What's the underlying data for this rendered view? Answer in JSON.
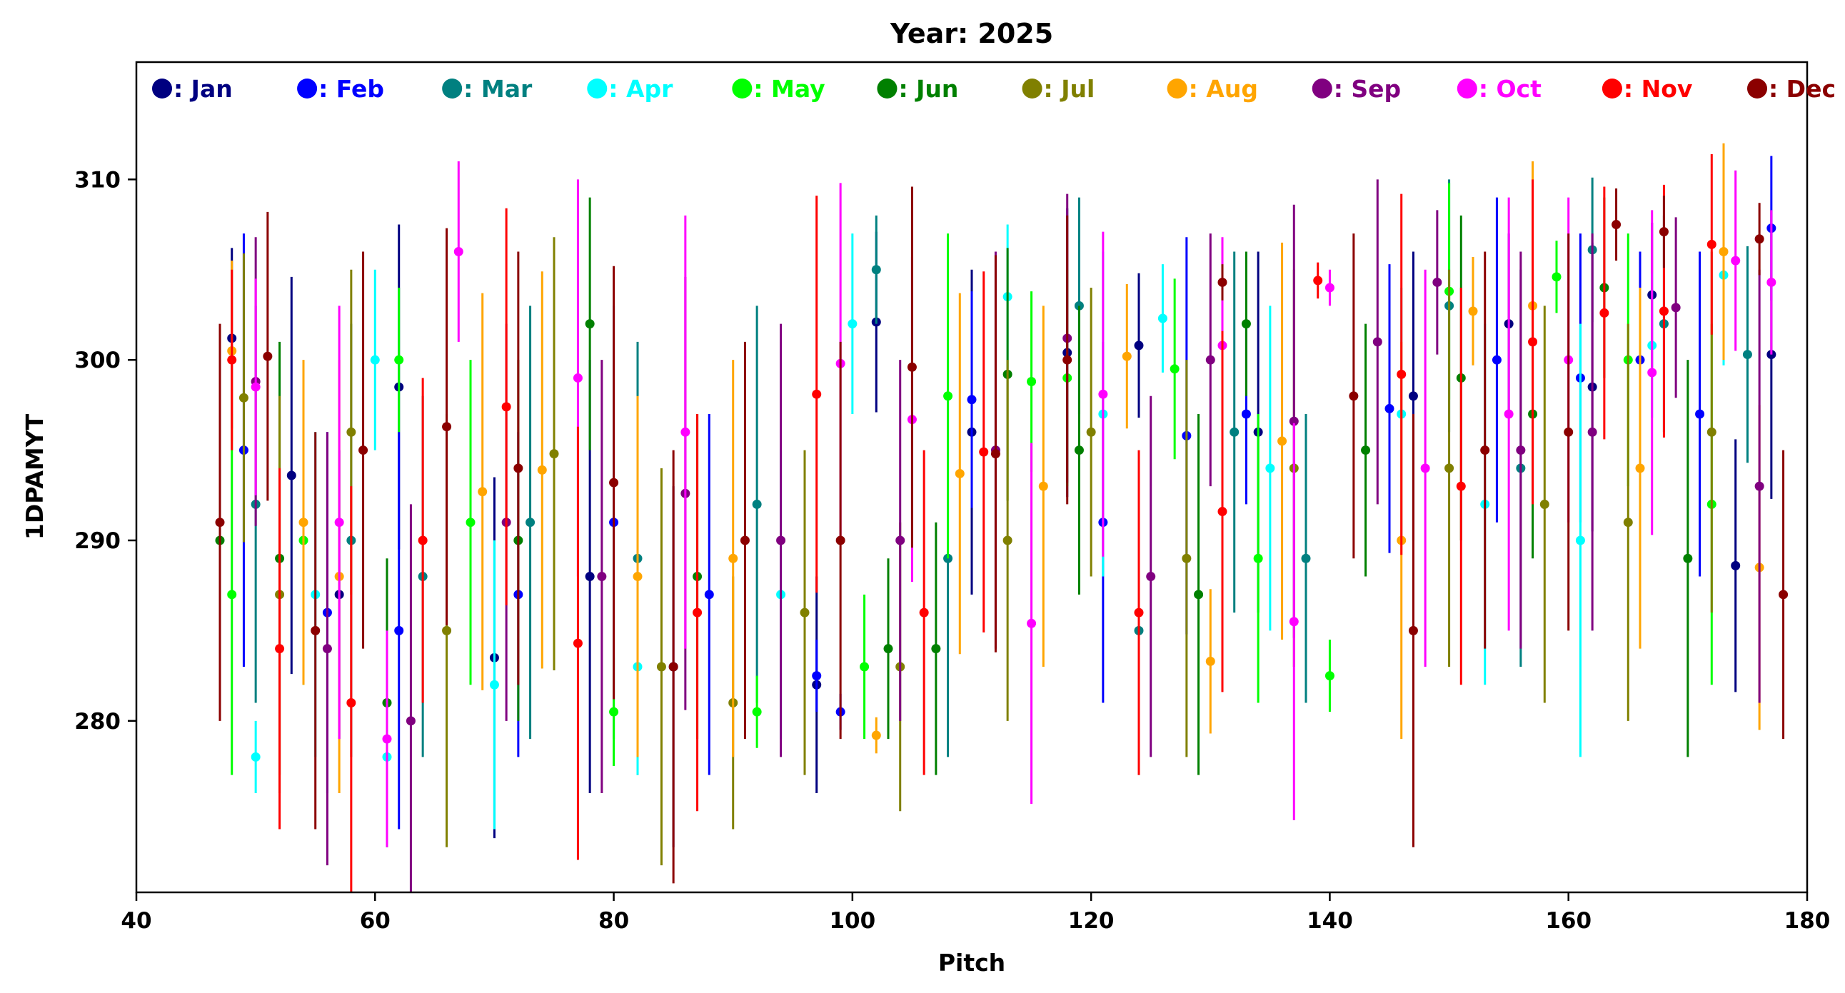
{
  "chart_data": {
    "type": "scatter",
    "title": "Year: 2025",
    "xlabel": "Pitch",
    "ylabel": "1DPAMYT",
    "xlim": [
      40,
      180
    ],
    "ylim": [
      270.5,
      316.5
    ],
    "x_ticks": [
      40,
      60,
      80,
      100,
      120,
      140,
      160,
      180
    ],
    "y_ticks": [
      280,
      290,
      300,
      310
    ],
    "grid": false,
    "legend_placement": "top, single row inside axes",
    "error_bars": true,
    "legend": [
      {
        "label": "Jan",
        "color": "#000080"
      },
      {
        "label": "Feb",
        "color": "#0000ff"
      },
      {
        "label": "Mar",
        "color": "#008080"
      },
      {
        "label": "Apr",
        "color": "#00ffff"
      },
      {
        "label": "May",
        "color": "#00ff00"
      },
      {
        "label": "Jun",
        "color": "#008000"
      },
      {
        "label": "Jul",
        "color": "#808000"
      },
      {
        "label": "Aug",
        "color": "#ffa500"
      },
      {
        "label": "Sep",
        "color": "#800080"
      },
      {
        "label": "Oct",
        "color": "#ff00ff"
      },
      {
        "label": "Nov",
        "color": "#ff0000"
      },
      {
        "label": "Dec",
        "color": "#8b0000"
      }
    ],
    "series": [
      {
        "name": "Jan",
        "points": [
          [
            48,
            301.2,
            5
          ],
          [
            53,
            293.6,
            11
          ],
          [
            57,
            287.0,
            8
          ],
          [
            62,
            298.5,
            9
          ],
          [
            70,
            283.5,
            10
          ],
          [
            78,
            288.0,
            12
          ],
          [
            85,
            283.0,
            10
          ],
          [
            97,
            282.0,
            6
          ],
          [
            102,
            302.1,
            5
          ],
          [
            110,
            296.0,
            9
          ],
          [
            118,
            300.4,
            8
          ],
          [
            124,
            300.8,
            4
          ],
          [
            134,
            296.0,
            10
          ],
          [
            147,
            298.0,
            8
          ],
          [
            155,
            302.0,
            5
          ],
          [
            162,
            298.5,
            8
          ],
          [
            167,
            303.6,
            4
          ],
          [
            174,
            288.6,
            7
          ],
          [
            177,
            300.3,
            8
          ]
        ]
      },
      {
        "name": "Feb",
        "points": [
          [
            49,
            295.0,
            12
          ],
          [
            56,
            286.0,
            10
          ],
          [
            62,
            285.0,
            11
          ],
          [
            72,
            287.0,
            9
          ],
          [
            80,
            291.0,
            12
          ],
          [
            88,
            287.0,
            10
          ],
          [
            97,
            282.5,
            2
          ],
          [
            99,
            280.5,
            1
          ],
          [
            110,
            297.8,
            6
          ],
          [
            121,
            291.0,
            10
          ],
          [
            128,
            295.8,
            11
          ],
          [
            133,
            297.0,
            5
          ],
          [
            145,
            297.3,
            8
          ],
          [
            154,
            300.0,
            9
          ],
          [
            161,
            299.0,
            8
          ],
          [
            166,
            300.0,
            6
          ],
          [
            171,
            297.0,
            9
          ],
          [
            177,
            307.3,
            4
          ]
        ]
      },
      {
        "name": "Mar",
        "points": [
          [
            50,
            292.0,
            11
          ],
          [
            58,
            290.0,
            12
          ],
          [
            64,
            288.0,
            10
          ],
          [
            73,
            291.0,
            12
          ],
          [
            82,
            289.0,
            12
          ],
          [
            92,
            292.0,
            11
          ],
          [
            102,
            305.0,
            3
          ],
          [
            108,
            289.0,
            11
          ],
          [
            119,
            303.0,
            6
          ],
          [
            124,
            285.0,
            8
          ],
          [
            132,
            296.0,
            10
          ],
          [
            138,
            289.0,
            8
          ],
          [
            150,
            303.0,
            7
          ],
          [
            156,
            294.0,
            11
          ],
          [
            162,
            306.1,
            4
          ],
          [
            168,
            302.0,
            6
          ],
          [
            175,
            300.3,
            6
          ]
        ]
      },
      {
        "name": "Apr",
        "points": [
          [
            50,
            278.0,
            2
          ],
          [
            55,
            287.0,
            9
          ],
          [
            60,
            300.0,
            5
          ],
          [
            61,
            278.0,
            1
          ],
          [
            70,
            282.0,
            8
          ],
          [
            82,
            283.0,
            6
          ],
          [
            94,
            287.0,
            8
          ],
          [
            100,
            302.0,
            5
          ],
          [
            113,
            303.5,
            4
          ],
          [
            121,
            297.0,
            9
          ],
          [
            126,
            302.3,
            3
          ],
          [
            135,
            294.0,
            9
          ],
          [
            146,
            297.0,
            7
          ],
          [
            153,
            292.0,
            10
          ],
          [
            161,
            290.0,
            12
          ],
          [
            167,
            300.8,
            4
          ],
          [
            173,
            304.7,
            5
          ]
        ]
      },
      {
        "name": "May",
        "points": [
          [
            48,
            287.0,
            10
          ],
          [
            54,
            290.0,
            8
          ],
          [
            62,
            300.0,
            4
          ],
          [
            68,
            291.0,
            9
          ],
          [
            80,
            280.5,
            3
          ],
          [
            92,
            280.5,
            2
          ],
          [
            101,
            283.0,
            4
          ],
          [
            108,
            298.0,
            9
          ],
          [
            115,
            298.8,
            5
          ],
          [
            118,
            299.0,
            6
          ],
          [
            127,
            299.5,
            5
          ],
          [
            134,
            289.0,
            8
          ],
          [
            140,
            282.5,
            2
          ],
          [
            150,
            303.8,
            6
          ],
          [
            159,
            304.6,
            2
          ],
          [
            165,
            300.0,
            7
          ],
          [
            172,
            292.0,
            10
          ]
        ]
      },
      {
        "name": "Jun",
        "points": [
          [
            47,
            290.0,
            8
          ],
          [
            52,
            289.0,
            12
          ],
          [
            61,
            281.0,
            8
          ],
          [
            72,
            290.0,
            10
          ],
          [
            78,
            302.0,
            7
          ],
          [
            87,
            288.0,
            9
          ],
          [
            103,
            284.0,
            5
          ],
          [
            107,
            284.0,
            7
          ],
          [
            113,
            299.2,
            7
          ],
          [
            119,
            295.0,
            8
          ],
          [
            129,
            287.0,
            10
          ],
          [
            133,
            302.0,
            4
          ],
          [
            143,
            295.0,
            7
          ],
          [
            151,
            299.0,
            9
          ],
          [
            157,
            297.0,
            8
          ],
          [
            163,
            304.0,
            5
          ],
          [
            170,
            289.0,
            11
          ]
        ]
      },
      {
        "name": "Jul",
        "points": [
          [
            49,
            297.9,
            8
          ],
          [
            52,
            287.0,
            11
          ],
          [
            58,
            296.0,
            9
          ],
          [
            66,
            285.0,
            12
          ],
          [
            75,
            294.8,
            12
          ],
          [
            84,
            283.0,
            11
          ],
          [
            90,
            281.0,
            7
          ],
          [
            96,
            286.0,
            9
          ],
          [
            104,
            283.0,
            8
          ],
          [
            113,
            290.0,
            10
          ],
          [
            120,
            296.0,
            8
          ],
          [
            128,
            289.0,
            11
          ],
          [
            137,
            294.0,
            11
          ],
          [
            150,
            294.0,
            11
          ],
          [
            158,
            292.0,
            11
          ],
          [
            165,
            291.0,
            11
          ],
          [
            172,
            296.0,
            10
          ]
        ]
      },
      {
        "name": "Aug",
        "points": [
          [
            48,
            300.5,
            5
          ],
          [
            54,
            291.0,
            9
          ],
          [
            57,
            288.0,
            12
          ],
          [
            69,
            292.7,
            11
          ],
          [
            74,
            293.9,
            11
          ],
          [
            82,
            288.0,
            10
          ],
          [
            90,
            289.0,
            11
          ],
          [
            102,
            279.2,
            1
          ],
          [
            109,
            293.7,
            10
          ],
          [
            116,
            293.0,
            10
          ],
          [
            123,
            300.2,
            4
          ],
          [
            130,
            283.3,
            4
          ],
          [
            136,
            295.5,
            11
          ],
          [
            146,
            290.0,
            11
          ],
          [
            152,
            302.7,
            3
          ],
          [
            157,
            303.0,
            8
          ],
          [
            166,
            294.0,
            10
          ],
          [
            173,
            306.0,
            6
          ],
          [
            176,
            288.5,
            9
          ]
        ]
      },
      {
        "name": "Sep",
        "points": [
          [
            50,
            298.8,
            8
          ],
          [
            56,
            284.0,
            12
          ],
          [
            63,
            280.0,
            12
          ],
          [
            71,
            291.0,
            11
          ],
          [
            79,
            288.0,
            12
          ],
          [
            86,
            292.6,
            12
          ],
          [
            94,
            290.0,
            12
          ],
          [
            104,
            290.0,
            10
          ],
          [
            112,
            295.0,
            11
          ],
          [
            118,
            301.2,
            8
          ],
          [
            125,
            288.0,
            10
          ],
          [
            130,
            300.0,
            7
          ],
          [
            137,
            296.6,
            12
          ],
          [
            144,
            301.0,
            9
          ],
          [
            149,
            304.3,
            4
          ],
          [
            156,
            295.0,
            11
          ],
          [
            162,
            296.0,
            11
          ],
          [
            169,
            302.9,
            5
          ],
          [
            176,
            293.0,
            12
          ]
        ]
      },
      {
        "name": "Oct",
        "points": [
          [
            50,
            298.5,
            6
          ],
          [
            57,
            291.0,
            12
          ],
          [
            61,
            279.0,
            6
          ],
          [
            67,
            306.0,
            5
          ],
          [
            77,
            299.0,
            11
          ],
          [
            86,
            296.0,
            12
          ],
          [
            99,
            299.8,
            10
          ],
          [
            105,
            296.7,
            9
          ],
          [
            115,
            285.4,
            10
          ],
          [
            121,
            298.1,
            9
          ],
          [
            131,
            300.8,
            6
          ],
          [
            137,
            285.5,
            11
          ],
          [
            140,
            304.0,
            1
          ],
          [
            148,
            294.0,
            11
          ],
          [
            155,
            297.0,
            12
          ],
          [
            160,
            300.0,
            9
          ],
          [
            167,
            299.3,
            9
          ],
          [
            174,
            305.5,
            5
          ],
          [
            177,
            304.3,
            4
          ]
        ]
      },
      {
        "name": "Nov",
        "points": [
          [
            48,
            300.0,
            5
          ],
          [
            52,
            284.0,
            10
          ],
          [
            58,
            281.0,
            12
          ],
          [
            64,
            290.0,
            9
          ],
          [
            71,
            297.4,
            11
          ],
          [
            77,
            284.3,
            12
          ],
          [
            87,
            286.0,
            11
          ],
          [
            97,
            298.1,
            11
          ],
          [
            106,
            286.0,
            9
          ],
          [
            111,
            294.9,
            10
          ],
          [
            124,
            286.0,
            9
          ],
          [
            131,
            291.6,
            10
          ],
          [
            139,
            304.4,
            1
          ],
          [
            146,
            299.2,
            10
          ],
          [
            151,
            293.0,
            11
          ],
          [
            157,
            301.0,
            9
          ],
          [
            163,
            302.6,
            7
          ],
          [
            168,
            302.7,
            7
          ],
          [
            172,
            306.4,
            5
          ]
        ]
      },
      {
        "name": "Dec",
        "points": [
          [
            47,
            291.0,
            11
          ],
          [
            51,
            300.2,
            8
          ],
          [
            55,
            285.0,
            11
          ],
          [
            59,
            295.0,
            11
          ],
          [
            66,
            296.3,
            11
          ],
          [
            72,
            294.0,
            12
          ],
          [
            80,
            293.2,
            12
          ],
          [
            85,
            283.0,
            12
          ],
          [
            91,
            290.0,
            11
          ],
          [
            99,
            290.0,
            11
          ],
          [
            105,
            299.6,
            10
          ],
          [
            112,
            294.8,
            11
          ],
          [
            118,
            300.0,
            8
          ],
          [
            131,
            304.3,
            1
          ],
          [
            142,
            298.0,
            9
          ],
          [
            147,
            285.0,
            12
          ],
          [
            153,
            295.0,
            11
          ],
          [
            160,
            296.0,
            11
          ],
          [
            164,
            307.5,
            2
          ],
          [
            168,
            307.1,
            2
          ],
          [
            176,
            306.7,
            2
          ],
          [
            178,
            287.0,
            8
          ]
        ]
      }
    ]
  }
}
